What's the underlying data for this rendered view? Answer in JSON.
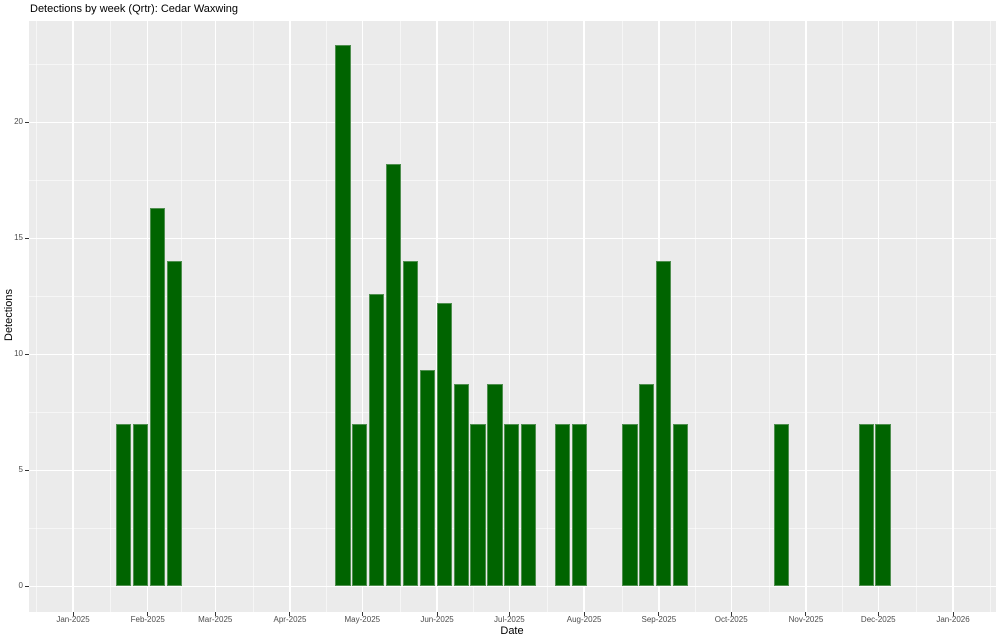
{
  "chart_data": {
    "type": "bar",
    "title": "Detections by week (Qrtr): Cedar Waxwing",
    "xlabel": "Date",
    "ylabel": "Detections",
    "legend": "none",
    "grid": "white major/minor on gray panel",
    "panel_theme": "ggplot-gray",
    "y_axis": {
      "ticks": [
        {
          "label": "0",
          "value": 0
        },
        {
          "label": "5",
          "value": 5
        },
        {
          "label": "10",
          "value": 10
        },
        {
          "label": "15",
          "value": 15
        },
        {
          "label": "20",
          "value": 20
        }
      ],
      "minor_ticks": [
        2.5,
        7.5,
        12.5,
        17.5,
        22.5
      ],
      "lim": [
        -1.2,
        24.4
      ]
    },
    "x_axis": {
      "ticks": [
        {
          "label": "Jan-2025",
          "date": "2025-01-01"
        },
        {
          "label": "Feb-2025",
          "date": "2025-02-01"
        },
        {
          "label": "Mar-2025",
          "date": "2025-03-01"
        },
        {
          "label": "Apr-2025",
          "date": "2025-04-01"
        },
        {
          "label": "May-2025",
          "date": "2025-05-01"
        },
        {
          "label": "Jun-2025",
          "date": "2025-06-01"
        },
        {
          "label": "Jul-2025",
          "date": "2025-07-01"
        },
        {
          "label": "Aug-2025",
          "date": "2025-08-01"
        },
        {
          "label": "Sep-2025",
          "date": "2025-09-01"
        },
        {
          "label": "Oct-2025",
          "date": "2025-10-01"
        },
        {
          "label": "Nov-2025",
          "date": "2025-11-01"
        },
        {
          "label": "Dec-2025",
          "date": "2025-12-01"
        },
        {
          "label": "Jan-2026",
          "date": "2026-01-01"
        }
      ]
    },
    "bar_width_days": 6.3,
    "bars": [
      {
        "week": "2025-01-22",
        "value": 7
      },
      {
        "week": "2025-01-29",
        "value": 7
      },
      {
        "week": "2025-02-05",
        "value": 16.3
      },
      {
        "week": "2025-02-12",
        "value": 14
      },
      {
        "week": "2025-04-23",
        "value": 23.3
      },
      {
        "week": "2025-04-30",
        "value": 7
      },
      {
        "week": "2025-05-07",
        "value": 12.6
      },
      {
        "week": "2025-05-14",
        "value": 18.2
      },
      {
        "week": "2025-05-21",
        "value": 14
      },
      {
        "week": "2025-05-28",
        "value": 9.3
      },
      {
        "week": "2025-06-04",
        "value": 12.2
      },
      {
        "week": "2025-06-11",
        "value": 8.7
      },
      {
        "week": "2025-06-18",
        "value": 7
      },
      {
        "week": "2025-06-25",
        "value": 8.7
      },
      {
        "week": "2025-07-02",
        "value": 7
      },
      {
        "week": "2025-07-09",
        "value": 7
      },
      {
        "week": "2025-07-23",
        "value": 7
      },
      {
        "week": "2025-07-30",
        "value": 7
      },
      {
        "week": "2025-08-20",
        "value": 7
      },
      {
        "week": "2025-08-27",
        "value": 8.7
      },
      {
        "week": "2025-09-03",
        "value": 14
      },
      {
        "week": "2025-09-10",
        "value": 7
      },
      {
        "week": "2025-10-22",
        "value": 7
      },
      {
        "week": "2025-11-26",
        "value": 7
      },
      {
        "week": "2025-12-03",
        "value": 7
      }
    ],
    "colors": {
      "bar_fill": "#006400",
      "bar_border": "#4F8F4F",
      "panel_bg": "#EBEBEB",
      "gridline": "#FFFFFF",
      "tick_label": "#4D4D4D",
      "tick_mark": "#333333",
      "text": "#000000",
      "page_bg": "#FFFFFF"
    }
  }
}
